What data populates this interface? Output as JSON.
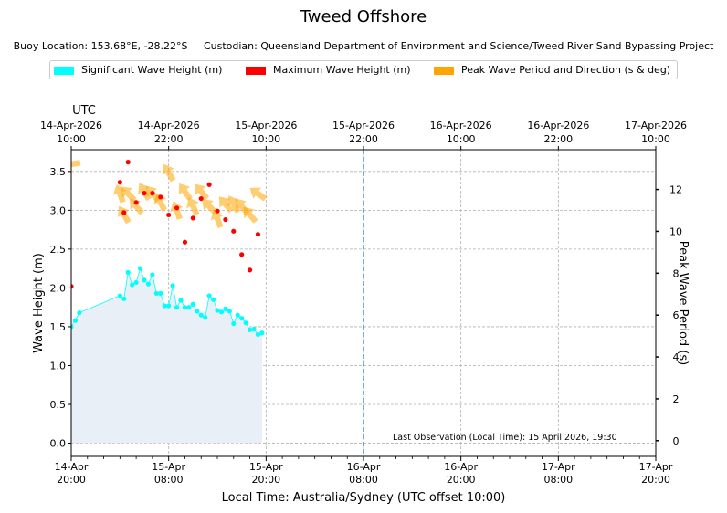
{
  "title": "Tweed Offshore",
  "subtitle": {
    "buoy_location": "Buoy Location: 153.68°E, -28.22°S",
    "custodian": "Custodian: Queensland Department of Environment and Science/Tweed River Sand Bypassing Project"
  },
  "legend": [
    {
      "label": "Significant Wave Height (m)",
      "color": "#00ffff"
    },
    {
      "label": "Maximum Wave Height (m)",
      "color": "#ff0000"
    },
    {
      "label": "Peak Wave Period and Direction (s & deg)",
      "color": "#ffa500"
    }
  ],
  "colors": {
    "hsig_line": "#00ffff",
    "fill": "#e8eff7",
    "hmax": "#ff0000",
    "arrow": "#ffa500",
    "now_line": "#1f77b4",
    "grid": "#b0b0b0"
  },
  "chart_data": {
    "type": "line",
    "x_unit": "hours since 14-Apr 20:00 local",
    "xlim": [
      0,
      72
    ],
    "left_axis": {
      "label": "Wave Height (m)",
      "ylim": [
        -0.17,
        3.78
      ],
      "ticks": [
        "0.0",
        "0.5",
        "1.0",
        "1.5",
        "2.0",
        "2.5",
        "3.0",
        "3.5"
      ]
    },
    "right_axis": {
      "label": "Peak Wave Period (s)",
      "ylim": [
        -0.75,
        13.9
      ],
      "ticks": [
        "0",
        "2",
        "4",
        "6",
        "8",
        "10",
        "12"
      ]
    },
    "top_axis": {
      "label": "UTC",
      "ticks": [
        {
          "date": "14-Apr-2026",
          "time": "10:00"
        },
        {
          "date": "14-Apr-2026",
          "time": "22:00"
        },
        {
          "date": "15-Apr-2026",
          "time": "10:00"
        },
        {
          "date": "15-Apr-2026",
          "time": "22:00"
        },
        {
          "date": "16-Apr-2026",
          "time": "10:00"
        },
        {
          "date": "16-Apr-2026",
          "time": "22:00"
        },
        {
          "date": "17-Apr-2026",
          "time": "10:00"
        }
      ]
    },
    "bottom_axis": {
      "label": "Local Time: Australia/Sydney (UTC offset 10:00)",
      "ticks": [
        {
          "date": "14-Apr",
          "time": "20:00"
        },
        {
          "date": "15-Apr",
          "time": "08:00"
        },
        {
          "date": "15-Apr",
          "time": "20:00"
        },
        {
          "date": "16-Apr",
          "time": "08:00"
        },
        {
          "date": "16-Apr",
          "time": "20:00"
        },
        {
          "date": "17-Apr",
          "time": "08:00"
        },
        {
          "date": "17-Apr",
          "time": "20:00"
        }
      ]
    },
    "significant_wave_height": {
      "name": "Significant Wave Height (m)",
      "x": [
        0,
        0.5,
        1,
        6,
        6.5,
        7,
        7.5,
        8,
        8.5,
        9,
        9.5,
        10,
        10.5,
        11,
        11.5,
        12,
        12.5,
        13,
        13.5,
        14,
        14.5,
        15,
        15.5,
        16,
        16.5,
        17,
        17.5,
        18,
        18.5,
        19,
        19.5,
        20,
        20.5,
        21,
        21.5,
        22,
        22.5,
        23,
        23.5
      ],
      "values": [
        1.5,
        1.58,
        1.68,
        1.9,
        1.86,
        2.2,
        2.04,
        2.07,
        2.25,
        2.1,
        2.05,
        2.17,
        1.93,
        1.93,
        1.77,
        1.77,
        2.03,
        1.75,
        1.84,
        1.75,
        1.75,
        1.79,
        1.7,
        1.65,
        1.62,
        1.9,
        1.85,
        1.71,
        1.69,
        1.73,
        1.7,
        1.54,
        1.65,
        1.61,
        1.55,
        1.46,
        1.47,
        1.4,
        1.42
      ]
    },
    "maximum_wave_height": {
      "name": "Maximum Wave Height (m)",
      "x": [
        0,
        6,
        6.5,
        7,
        8,
        9,
        10,
        11,
        12,
        13,
        14,
        15,
        16,
        17,
        18,
        19,
        20,
        21,
        22,
        23
      ],
      "values": [
        2.02,
        3.36,
        2.97,
        3.62,
        3.1,
        3.22,
        3.22,
        3.17,
        2.94,
        3.03,
        2.59,
        2.9,
        3.15,
        3.33,
        2.99,
        2.88,
        2.73,
        2.43,
        2.23,
        2.69
      ]
    },
    "peak_period_direction": {
      "name": "Peak Wave Period and Direction (s & deg)",
      "x": [
        0,
        6,
        6.5,
        7,
        8,
        9,
        10,
        11,
        12,
        13,
        14,
        15,
        16,
        17,
        18,
        19,
        20,
        21,
        22,
        23
      ],
      "period_s": [
        13.2,
        11.8,
        10.8,
        11.8,
        11.2,
        11.9,
        11.8,
        11.4,
        12.8,
        11.0,
        11.9,
        11.2,
        11.9,
        11.2,
        10.6,
        11.3,
        11.3,
        11.2,
        10.8,
        11.8
      ],
      "direction_deg": [
        80,
        160,
        150,
        135,
        140,
        150,
        140,
        155,
        150,
        160,
        145,
        155,
        140,
        135,
        160,
        140,
        150,
        140,
        140,
        125
      ]
    },
    "now_marker_x": 36,
    "annotation": "Last Observation (Local Time): 15 April 2026, 19:30"
  }
}
